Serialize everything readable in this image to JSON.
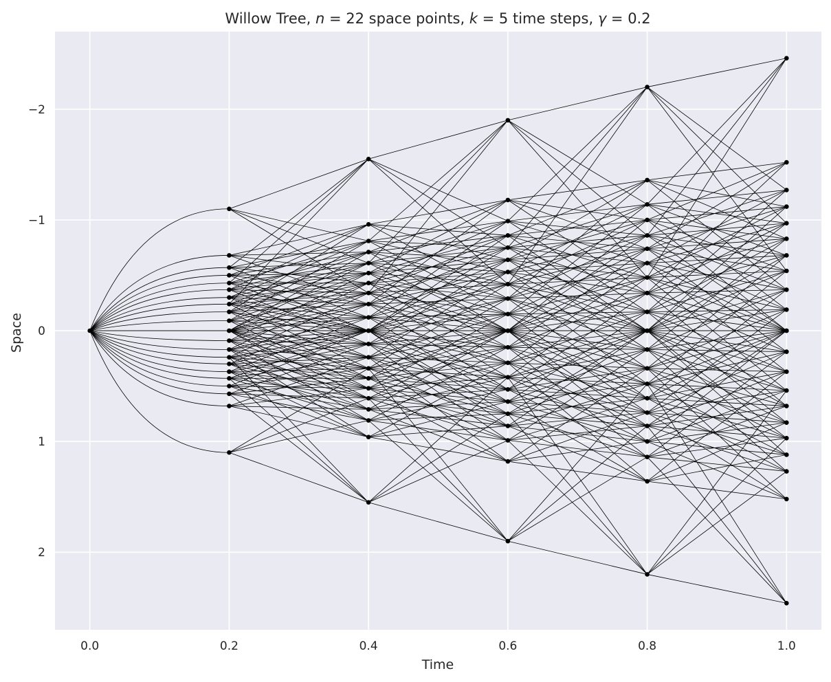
{
  "chart_data": {
    "type": "scatter",
    "title": {
      "prefix": "Willow Tree, ",
      "var_n": "n",
      "mid_n": " = 22 space points, ",
      "var_k": "k",
      "mid_k": " = 5 time steps, ",
      "var_gamma": "γ",
      "suffix": " = 0.2"
    },
    "xlabel": "Time",
    "ylabel": "Space",
    "xlim": [
      -0.05,
      1.05
    ],
    "ylim": [
      -2.7,
      2.7
    ],
    "y_inverted": true,
    "grid": true,
    "x_ticks": [
      "0.0",
      "0.2",
      "0.4",
      "0.6",
      "0.8",
      "1.0"
    ],
    "x_tick_values": [
      0.0,
      0.2,
      0.4,
      0.6,
      0.8,
      1.0
    ],
    "y_ticks": [
      "−2",
      "−1",
      "0",
      "1",
      "2"
    ],
    "y_tick_values": [
      -2,
      -1,
      0,
      1,
      2
    ],
    "time_points": [
      0.0,
      0.2,
      0.4,
      0.6,
      0.8,
      1.0
    ],
    "space_levels": [
      [
        0.0
      ],
      [
        -1.1,
        -0.68,
        -0.57,
        -0.5,
        -0.43,
        -0.37,
        -0.3,
        -0.24,
        -0.17,
        -0.09,
        0.0,
        0.0,
        0.09,
        0.17,
        0.24,
        0.3,
        0.37,
        0.43,
        0.5,
        0.57,
        0.68,
        1.1
      ],
      [
        -1.55,
        -0.96,
        -0.81,
        -0.71,
        -0.61,
        -0.52,
        -0.43,
        -0.34,
        -0.24,
        -0.12,
        0.0,
        0.0,
        0.12,
        0.24,
        0.34,
        0.43,
        0.52,
        0.61,
        0.71,
        0.81,
        0.96,
        1.55
      ],
      [
        -1.9,
        -1.18,
        -0.99,
        -0.86,
        -0.75,
        -0.64,
        -0.53,
        -0.42,
        -0.29,
        -0.15,
        0.0,
        0.0,
        0.15,
        0.29,
        0.42,
        0.53,
        0.64,
        0.75,
        0.86,
        0.99,
        1.18,
        1.9
      ],
      [
        -2.2,
        -1.36,
        -1.14,
        -1.0,
        -0.86,
        -0.74,
        -0.61,
        -0.48,
        -0.34,
        -0.17,
        0.0,
        0.0,
        0.17,
        0.34,
        0.48,
        0.61,
        0.74,
        0.86,
        1.0,
        1.14,
        1.36,
        2.2
      ],
      [
        -2.46,
        -1.52,
        -1.27,
        -1.12,
        -0.97,
        -0.83,
        -0.68,
        -0.54,
        -0.37,
        -0.19,
        0.0,
        0.0,
        0.19,
        0.37,
        0.54,
        0.68,
        0.83,
        0.97,
        1.12,
        1.27,
        1.52,
        2.46
      ]
    ],
    "node_color": "#000000",
    "edge_color": "#000000",
    "background_color": "#eaeaf2",
    "grid_color": "#ffffff"
  }
}
